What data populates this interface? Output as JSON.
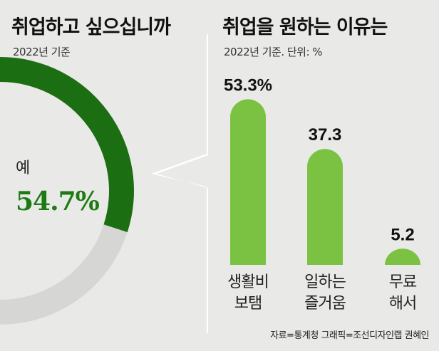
{
  "left": {
    "title": "취업하고 싶으십니까",
    "subtitle": "2022년 기준",
    "answer_label": "예",
    "answer_value": "54.7%"
  },
  "right": {
    "title": "취업을 원하는 이유는",
    "subtitle": "2022년 기준. 단위: %"
  },
  "footer": "자료=통계청  그래픽=조선디자인랩 권혜인",
  "colors": {
    "donut_yes": "#1b6e12",
    "donut_rest": "#d6d6d4",
    "bar": "#7cc242",
    "background": "#e9e9e7"
  },
  "chart_data": [
    {
      "type": "pie",
      "categories": [
        "예"
      ],
      "values": [
        54.7
      ],
      "title": "취업하고 싶으십니까",
      "subtitle": "2022년 기준"
    },
    {
      "type": "bar",
      "categories": [
        [
          "생활비",
          "보탬"
        ],
        [
          "일하는",
          "즐거움"
        ],
        [
          "무료",
          "해서"
        ]
      ],
      "values": [
        53.3,
        37.3,
        5.2
      ],
      "value_labels": [
        "53.3%",
        "37.3",
        "5.2"
      ],
      "title": "취업을 원하는 이유는",
      "subtitle": "2022년 기준. 단위: %",
      "ylim": [
        0,
        55
      ]
    }
  ]
}
